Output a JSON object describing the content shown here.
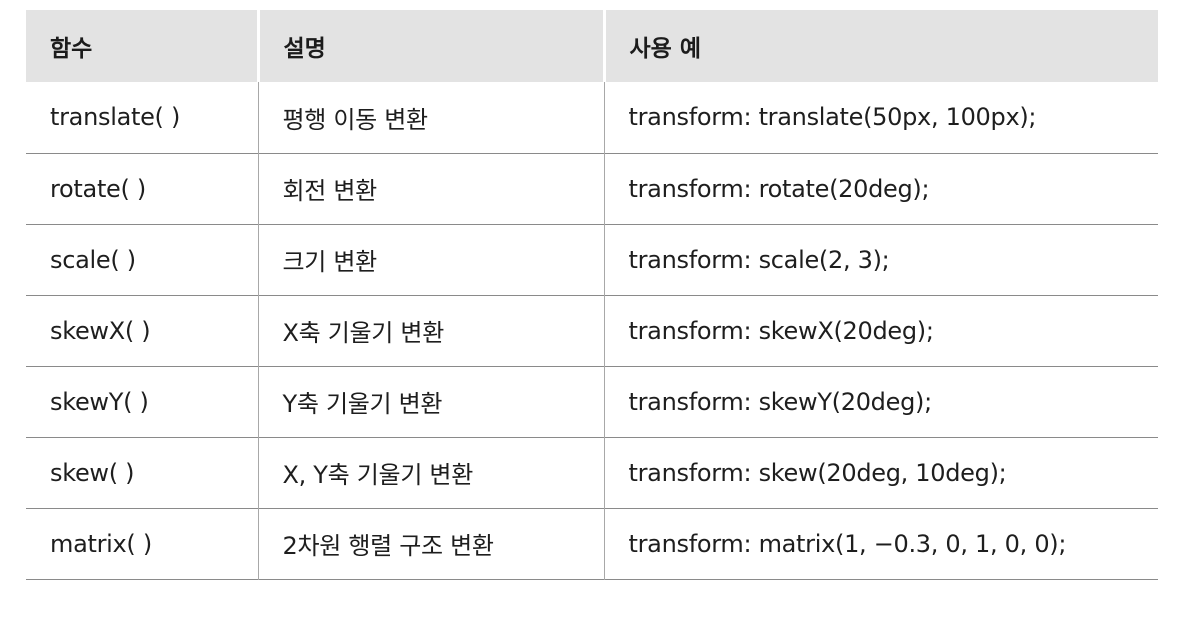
{
  "table": {
    "headers": [
      "함수",
      "설명",
      "사용 예"
    ],
    "rows": [
      [
        "translate( )",
        "평행 이동 변환",
        "transform: translate(50px, 100px);"
      ],
      [
        "rotate( )",
        "회전 변환",
        "transform: rotate(20deg);"
      ],
      [
        "scale( )",
        "크기 변환",
        "transform: scale(2, 3);"
      ],
      [
        "skewX( )",
        "X축 기울기 변환",
        "transform: skewX(20deg);"
      ],
      [
        "skewY( )",
        "Y축 기울기 변환",
        "transform: skewY(20deg);"
      ],
      [
        "skew( )",
        "X, Y축 기울기 변환",
        "transform: skew(20deg, 10deg);"
      ],
      [
        "matrix( )",
        "2차원 행렬 구조 변환",
        "transform: matrix(1, −0.3, 0, 1, 0, 0);"
      ]
    ]
  }
}
